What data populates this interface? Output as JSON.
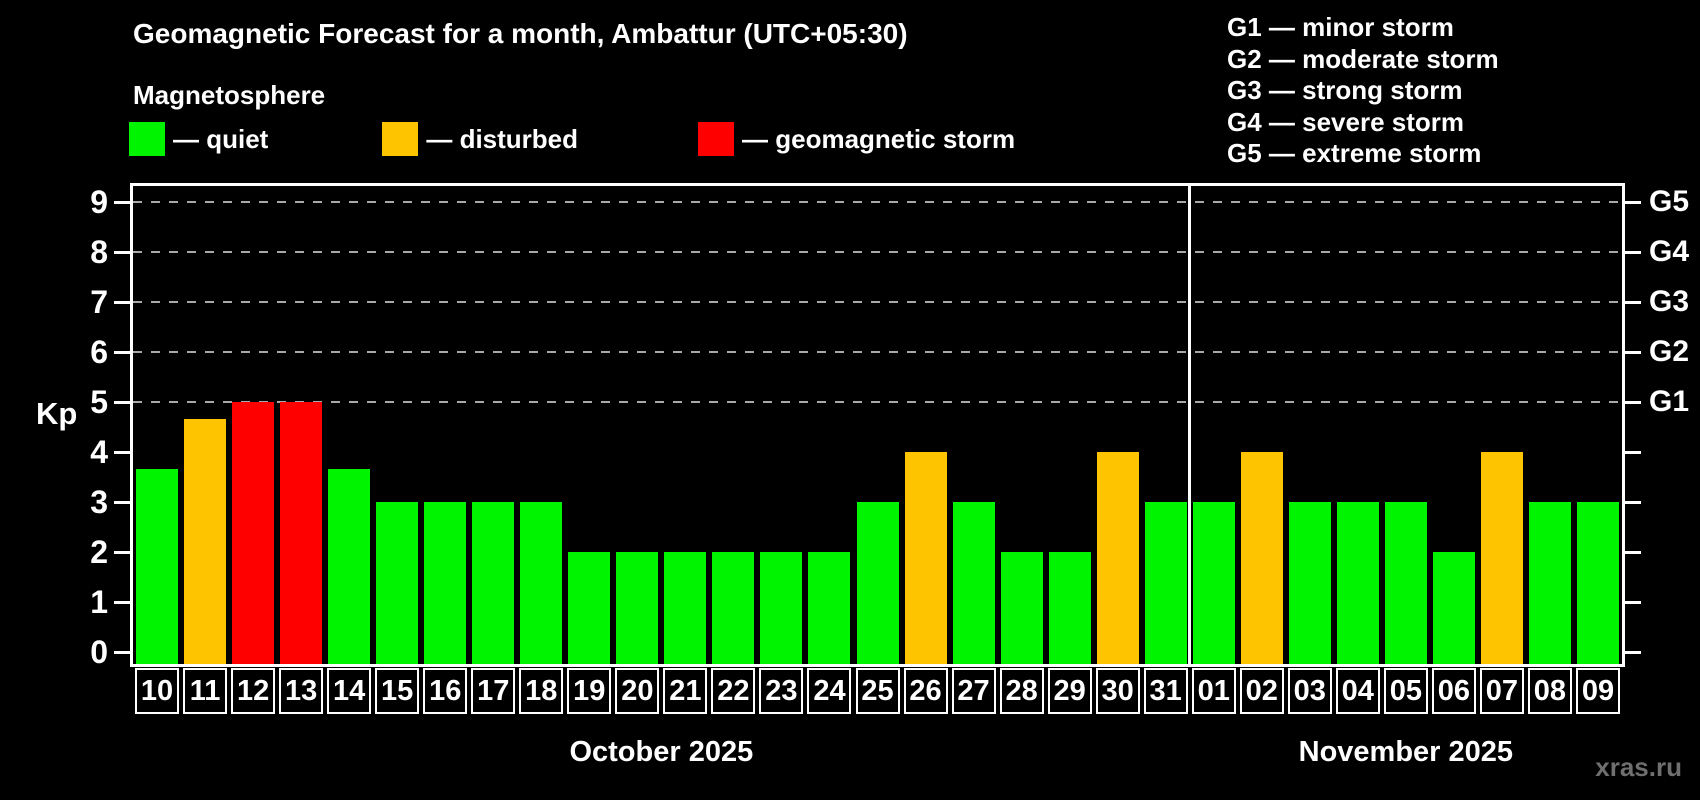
{
  "header": {
    "title": "Geomagnetic Forecast for a month, Ambattur (UTC+05:30)",
    "subtitle": "Magnetosphere",
    "legend": [
      {
        "status": "quiet",
        "label": "— quiet"
      },
      {
        "status": "disturbed",
        "label": "— disturbed"
      },
      {
        "status": "storm",
        "label": "— geomagnetic storm"
      }
    ],
    "storm_scale_legend": [
      "G1 — minor storm",
      "G2 — moderate storm",
      "G3 — strong storm",
      "G4 — severe storm",
      "G5 — extreme storm"
    ]
  },
  "colors": {
    "quiet": "#00f400",
    "disturbed": "#ffc400",
    "storm": "#ff0000",
    "frame": "#ffffff",
    "grid": "#a8a8a8",
    "watermark": "#6f6f6f"
  },
  "chart_data": {
    "type": "bar",
    "title": "Geomagnetic Forecast for a month, Ambattur (UTC+05:30)",
    "ylabel": "Kp",
    "ylim": [
      0,
      9
    ],
    "grid": "dashed horizontal at storm levels",
    "y_ticks": [
      0,
      1,
      2,
      3,
      4,
      5,
      6,
      7,
      8,
      9
    ],
    "gridlines_at": [
      5,
      6,
      7,
      8,
      9
    ],
    "right_axis": [
      {
        "kp": 5,
        "label": "G1"
      },
      {
        "kp": 6,
        "label": "G2"
      },
      {
        "kp": 7,
        "label": "G3"
      },
      {
        "kp": 8,
        "label": "G4"
      },
      {
        "kp": 9,
        "label": "G5"
      }
    ],
    "bars": [
      {
        "day": "10",
        "kp": 3.67,
        "status": "quiet"
      },
      {
        "day": "11",
        "kp": 4.67,
        "status": "disturbed"
      },
      {
        "day": "12",
        "kp": 5,
        "status": "storm"
      },
      {
        "day": "13",
        "kp": 5,
        "status": "storm"
      },
      {
        "day": "14",
        "kp": 3.67,
        "status": "quiet"
      },
      {
        "day": "15",
        "kp": 3,
        "status": "quiet"
      },
      {
        "day": "16",
        "kp": 3,
        "status": "quiet"
      },
      {
        "day": "17",
        "kp": 3,
        "status": "quiet"
      },
      {
        "day": "18",
        "kp": 3,
        "status": "quiet"
      },
      {
        "day": "19",
        "kp": 2,
        "status": "quiet"
      },
      {
        "day": "20",
        "kp": 2,
        "status": "quiet"
      },
      {
        "day": "21",
        "kp": 2,
        "status": "quiet"
      },
      {
        "day": "22",
        "kp": 2,
        "status": "quiet"
      },
      {
        "day": "23",
        "kp": 2,
        "status": "quiet"
      },
      {
        "day": "24",
        "kp": 2,
        "status": "quiet"
      },
      {
        "day": "25",
        "kp": 3,
        "status": "quiet"
      },
      {
        "day": "26",
        "kp": 4,
        "status": "disturbed"
      },
      {
        "day": "27",
        "kp": 3,
        "status": "quiet"
      },
      {
        "day": "28",
        "kp": 2,
        "status": "quiet"
      },
      {
        "day": "29",
        "kp": 2,
        "status": "quiet"
      },
      {
        "day": "30",
        "kp": 4,
        "status": "disturbed"
      },
      {
        "day": "31",
        "kp": 3,
        "status": "quiet"
      },
      {
        "day": "01",
        "kp": 3,
        "status": "quiet"
      },
      {
        "day": "02",
        "kp": 4,
        "status": "disturbed"
      },
      {
        "day": "03",
        "kp": 3,
        "status": "quiet"
      },
      {
        "day": "04",
        "kp": 3,
        "status": "quiet"
      },
      {
        "day": "05",
        "kp": 3,
        "status": "quiet"
      },
      {
        "day": "06",
        "kp": 2,
        "status": "quiet"
      },
      {
        "day": "07",
        "kp": 4,
        "status": "disturbed"
      },
      {
        "day": "08",
        "kp": 3,
        "status": "quiet"
      },
      {
        "day": "09",
        "kp": 3,
        "status": "quiet"
      }
    ],
    "months": [
      {
        "label": "October 2025",
        "days": 22
      },
      {
        "label": "November 2025",
        "days": 9
      }
    ],
    "separator_after_index": 21,
    "legend_position": "top-left and top-right"
  },
  "watermark": "xras.ru"
}
